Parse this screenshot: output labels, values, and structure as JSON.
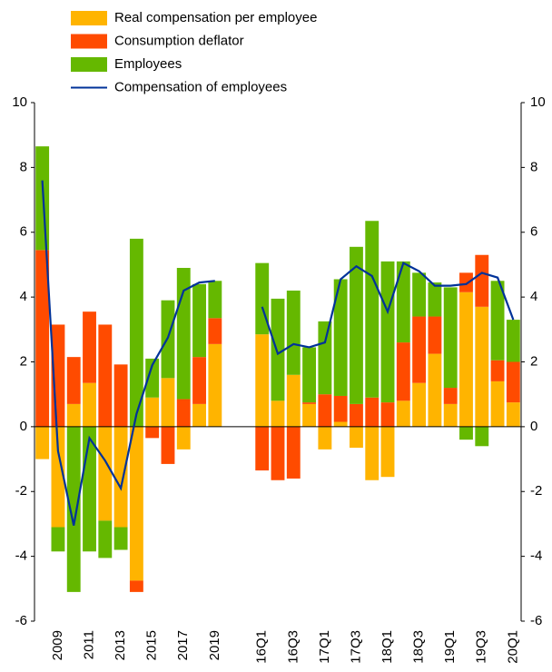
{
  "chart_data": {
    "type": "stacked-bar-line",
    "categories": [
      null,
      "2009",
      null,
      "2011",
      null,
      "2013",
      null,
      "2015",
      null,
      "2017",
      null,
      "2019",
      null,
      null,
      "16Q1",
      null,
      "16Q3",
      null,
      "17Q1",
      null,
      "17Q3",
      null,
      "18Q1",
      null,
      "18Q3",
      null,
      "19Q1",
      null,
      "19Q3",
      null,
      "20Q1"
    ],
    "series": [
      {
        "name": "Real compensation per employee",
        "color": "#ffb400",
        "kind": "bar",
        "values": [
          -1.0,
          -3.1,
          0.7,
          1.35,
          -2.9,
          -3.1,
          -4.75,
          0.9,
          1.5,
          -0.7,
          0.7,
          2.55,
          null,
          null,
          2.85,
          0.8,
          1.6,
          0.7,
          -0.7,
          0.15,
          -0.65,
          -1.65,
          -1.55,
          0.8,
          1.35,
          2.25,
          0.7,
          4.15,
          3.7,
          1.4,
          0.75
        ]
      },
      {
        "name": "Consumption deflator",
        "color": "#ff4b00",
        "kind": "bar",
        "values": [
          5.45,
          3.15,
          1.45,
          2.2,
          3.15,
          1.92,
          -0.35,
          -0.35,
          -1.15,
          0.85,
          1.45,
          0.8,
          null,
          null,
          -1.35,
          -1.65,
          -1.6,
          0.05,
          1.0,
          0.8,
          0.7,
          0.9,
          0.75,
          1.8,
          2.05,
          1.15,
          0.5,
          0.6,
          1.6,
          0.65,
          1.25
        ]
      },
      {
        "name": "Employees",
        "color": "#65b800",
        "kind": "bar",
        "values": [
          3.2,
          -0.75,
          -5.1,
          -3.85,
          -1.15,
          -0.7,
          5.8,
          1.2,
          2.4,
          4.05,
          2.25,
          1.15,
          null,
          null,
          2.2,
          3.15,
          2.6,
          1.7,
          2.25,
          3.6,
          4.85,
          5.45,
          4.35,
          2.5,
          1.35,
          1.05,
          3.1,
          -0.4,
          -0.6,
          2.45,
          1.3
        ]
      },
      {
        "name": "Compensation of employees",
        "color": "#003299",
        "kind": "line",
        "values": [
          7.6,
          -0.75,
          -3.05,
          -0.35,
          -1.05,
          -1.9,
          0.4,
          1.9,
          2.75,
          4.2,
          4.45,
          4.5,
          null,
          null,
          3.7,
          2.25,
          2.55,
          2.45,
          2.6,
          4.55,
          4.95,
          4.65,
          3.55,
          5.05,
          4.8,
          4.35,
          4.35,
          4.4,
          4.75,
          4.6,
          3.3
        ]
      }
    ],
    "ylim": [
      -6,
      10
    ],
    "yticks": [
      -6,
      -4,
      -2,
      0,
      2,
      4,
      6,
      8,
      10
    ],
    "y2lim": [
      -6,
      10
    ],
    "y2ticks": [
      -6,
      -4,
      -2,
      0,
      2,
      4,
      6,
      8,
      10
    ]
  }
}
